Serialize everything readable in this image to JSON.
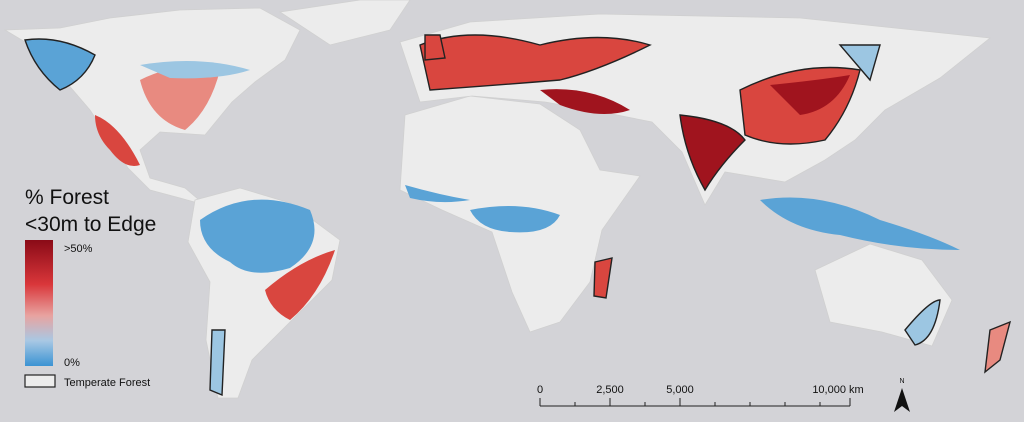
{
  "legend": {
    "title_lines": [
      "% Forest",
      "<30m to Edge"
    ],
    "max_label": ">50%",
    "min_label": "0%",
    "outline_label": "Temperate Forest"
  },
  "scale_bar": {
    "labels": [
      "0",
      "2,500",
      "5,000",
      "10,000 km"
    ]
  },
  "north_arrow": {
    "label": "N"
  }
}
